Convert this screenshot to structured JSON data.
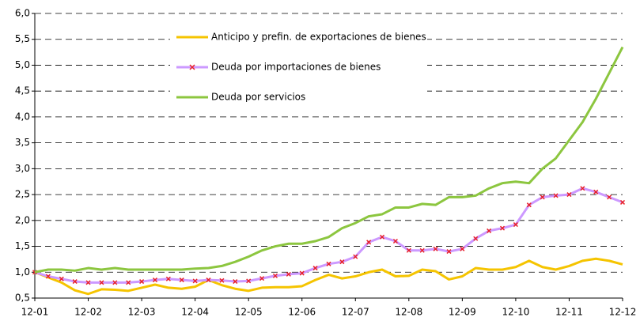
{
  "chart_data": {
    "type": "line",
    "categories": [
      "12-01",
      null,
      null,
      null,
      "12-02",
      null,
      null,
      null,
      "12-03",
      null,
      null,
      null,
      "12-04",
      null,
      null,
      null,
      "12-05",
      null,
      null,
      null,
      "12-06",
      null,
      null,
      null,
      "12-07",
      null,
      null,
      null,
      "12-08",
      null,
      null,
      null,
      "12-09",
      null,
      null,
      null,
      "12-10",
      null,
      null,
      null,
      "12-11",
      null,
      null,
      null,
      "12-12"
    ],
    "series": [
      {
        "name": "Anticipo y prefin. de exportaciones de bienes",
        "color": "#f5c400",
        "marker": false,
        "values": [
          1.0,
          0.9,
          0.8,
          0.65,
          0.58,
          0.67,
          0.66,
          0.64,
          0.7,
          0.76,
          0.7,
          0.68,
          0.72,
          0.85,
          0.75,
          0.68,
          0.64,
          0.7,
          0.71,
          0.71,
          0.73,
          0.85,
          0.95,
          0.88,
          0.92,
          1.0,
          1.05,
          0.92,
          0.93,
          1.05,
          1.02,
          0.86,
          0.92,
          1.08,
          1.05,
          1.05,
          1.1,
          1.22,
          1.1,
          1.05,
          1.12,
          1.22,
          1.26,
          1.22,
          1.15
        ]
      },
      {
        "name": "Deuda por importaciones de bienes",
        "color": "#cc99ff",
        "marker": true,
        "marker_color": "#e8202a",
        "values": [
          1.0,
          0.92,
          0.87,
          0.82,
          0.8,
          0.8,
          0.8,
          0.8,
          0.82,
          0.85,
          0.87,
          0.85,
          0.83,
          0.85,
          0.84,
          0.82,
          0.83,
          0.88,
          0.93,
          0.96,
          0.98,
          1.08,
          1.16,
          1.2,
          1.3,
          1.58,
          1.68,
          1.6,
          1.42,
          1.42,
          1.45,
          1.4,
          1.45,
          1.65,
          1.8,
          1.85,
          1.92,
          2.3,
          2.45,
          2.48,
          2.5,
          2.62,
          2.55,
          2.45,
          2.35
        ]
      },
      {
        "name": "Deuda por servicios",
        "color": "#8cc63f",
        "marker": false,
        "values": [
          1.0,
          1.05,
          1.05,
          1.03,
          1.08,
          1.05,
          1.08,
          1.05,
          1.05,
          1.05,
          1.05,
          1.05,
          1.07,
          1.08,
          1.12,
          1.2,
          1.3,
          1.42,
          1.5,
          1.55,
          1.55,
          1.6,
          1.68,
          1.85,
          1.95,
          2.08,
          2.12,
          2.25,
          2.25,
          2.32,
          2.3,
          2.45,
          2.45,
          2.48,
          2.62,
          2.72,
          2.75,
          2.72,
          3.0,
          3.2,
          3.55,
          3.9,
          4.35,
          4.85,
          5.35
        ]
      }
    ],
    "ylim": [
      0.5,
      6.0
    ],
    "yticks": [
      {
        "value": 0.5,
        "label": "0,5"
      },
      {
        "value": 1.0,
        "label": "1,0"
      },
      {
        "value": 1.5,
        "label": "1,5"
      },
      {
        "value": 2.0,
        "label": "2,0"
      },
      {
        "value": 2.5,
        "label": "2,5"
      },
      {
        "value": 3.0,
        "label": "3,0"
      },
      {
        "value": 3.5,
        "label": "3,5"
      },
      {
        "value": 4.0,
        "label": "4,0"
      },
      {
        "value": 4.5,
        "label": "4,5"
      },
      {
        "value": 5.0,
        "label": "5,0"
      },
      {
        "value": 5.5,
        "label": "5,5"
      },
      {
        "value": 6.0,
        "label": "6,0"
      }
    ],
    "grid": true,
    "legend": "upper center"
  }
}
